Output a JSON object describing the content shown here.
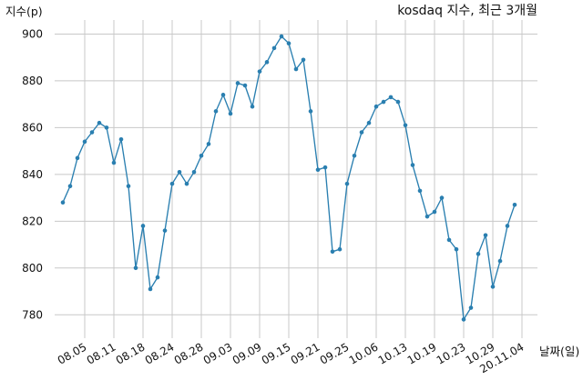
{
  "chart_data": {
    "type": "line",
    "title": "kosdaq 지수, 최근 3개월",
    "ylabel": "지수(p)",
    "xlabel": "날짜(일)",
    "ylim": [
      770,
      906
    ],
    "grid": true,
    "yticks": [
      780,
      800,
      820,
      840,
      860,
      880,
      900
    ],
    "xticks": [
      {
        "label": "08.05",
        "index": 3
      },
      {
        "label": "08.11",
        "index": 7
      },
      {
        "label": "08.18",
        "index": 11
      },
      {
        "label": "08.24",
        "index": 15
      },
      {
        "label": "08.28",
        "index": 19
      },
      {
        "label": "09.03",
        "index": 23
      },
      {
        "label": "09.09",
        "index": 27
      },
      {
        "label": "09.15",
        "index": 31
      },
      {
        "label": "09.21",
        "index": 35
      },
      {
        "label": "09.25",
        "index": 39
      },
      {
        "label": "10.06",
        "index": 43
      },
      {
        "label": "10.13",
        "index": 47
      },
      {
        "label": "10.19",
        "index": 51
      },
      {
        "label": "10.23",
        "index": 55
      },
      {
        "label": "10.29",
        "index": 59
      },
      {
        "label": "20.11.04",
        "index": 63
      }
    ],
    "series": [
      {
        "color": "#2a7fb0",
        "values": [
          828,
          835,
          847,
          854,
          858,
          862,
          860,
          845,
          855,
          835,
          800,
          818,
          791,
          796,
          816,
          836,
          841,
          836,
          841,
          848,
          853,
          867,
          874,
          866,
          879,
          878,
          869,
          884,
          888,
          894,
          899,
          896,
          885,
          889,
          867,
          842,
          843,
          807,
          808,
          836,
          848,
          858,
          862,
          869,
          871,
          873,
          871,
          861,
          844,
          833,
          822,
          824,
          830,
          812,
          808,
          778,
          783,
          806,
          814,
          792,
          803,
          818,
          827
        ]
      }
    ]
  }
}
